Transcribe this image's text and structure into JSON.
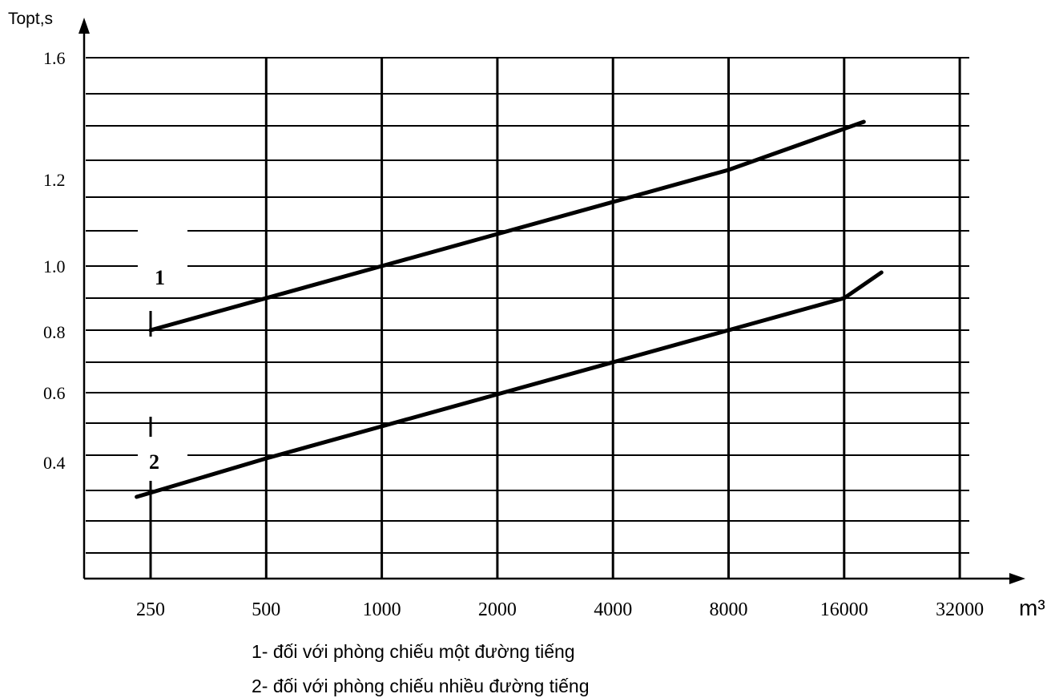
{
  "chart_data": {
    "type": "line",
    "title": "",
    "ylabel": "Topt,s",
    "xlabel": "m³",
    "x_scale": "log2",
    "xlim": [
      250,
      32000
    ],
    "grid": true,
    "x_ticks": [
      "250",
      "500",
      "1000",
      "2000",
      "4000",
      "8000",
      "16000",
      "32000"
    ],
    "y_ticks": [
      "1.6",
      "1.2",
      "1.0",
      "0.8",
      "0.6",
      "0.4"
    ],
    "series": [
      {
        "name": "1",
        "x": [
          250,
          1000,
          2000,
          4000,
          8000,
          18000
        ],
        "y": [
          0.8,
          1.0,
          1.1,
          1.2,
          1.3,
          1.45
        ]
      },
      {
        "name": "2",
        "x": [
          230,
          500,
          1000,
          2000,
          4000,
          8000,
          16000,
          20000
        ],
        "y": [
          0.28,
          0.4,
          0.5,
          0.6,
          0.7,
          0.8,
          0.9,
          0.98
        ]
      }
    ],
    "legend": [
      "1- đối với phòng chiếu một đường tiếng",
      "2- đối với phòng chiếu nhiều đường tiếng"
    ]
  }
}
